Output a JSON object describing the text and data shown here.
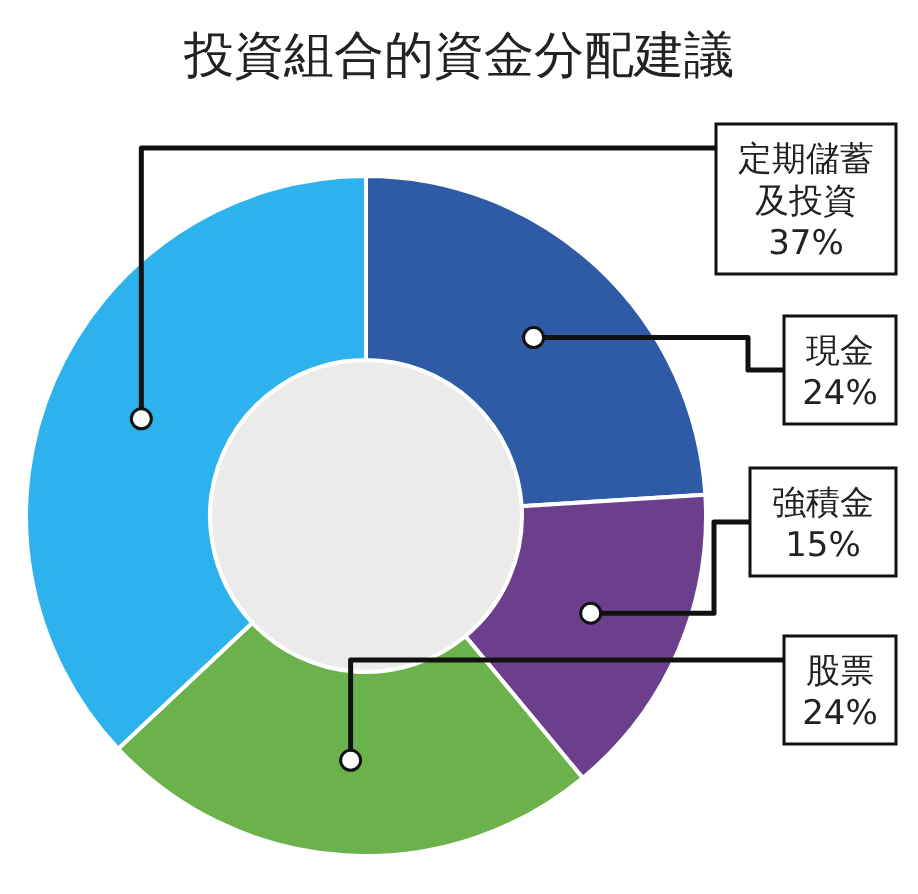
{
  "chart_data": {
    "type": "donut",
    "title": "投資組合的資金分配建議",
    "categories": [
      "現金",
      "強積金",
      "股票",
      "定期儲蓄及投資"
    ],
    "values": [
      24,
      15,
      24,
      37
    ],
    "colors": [
      "#2f5aa6",
      "#6c3f8c",
      "#6bb14c",
      "#2db2ee"
    ],
    "value_labels": [
      "24%",
      "15%",
      "24%",
      "37%"
    ]
  }
}
